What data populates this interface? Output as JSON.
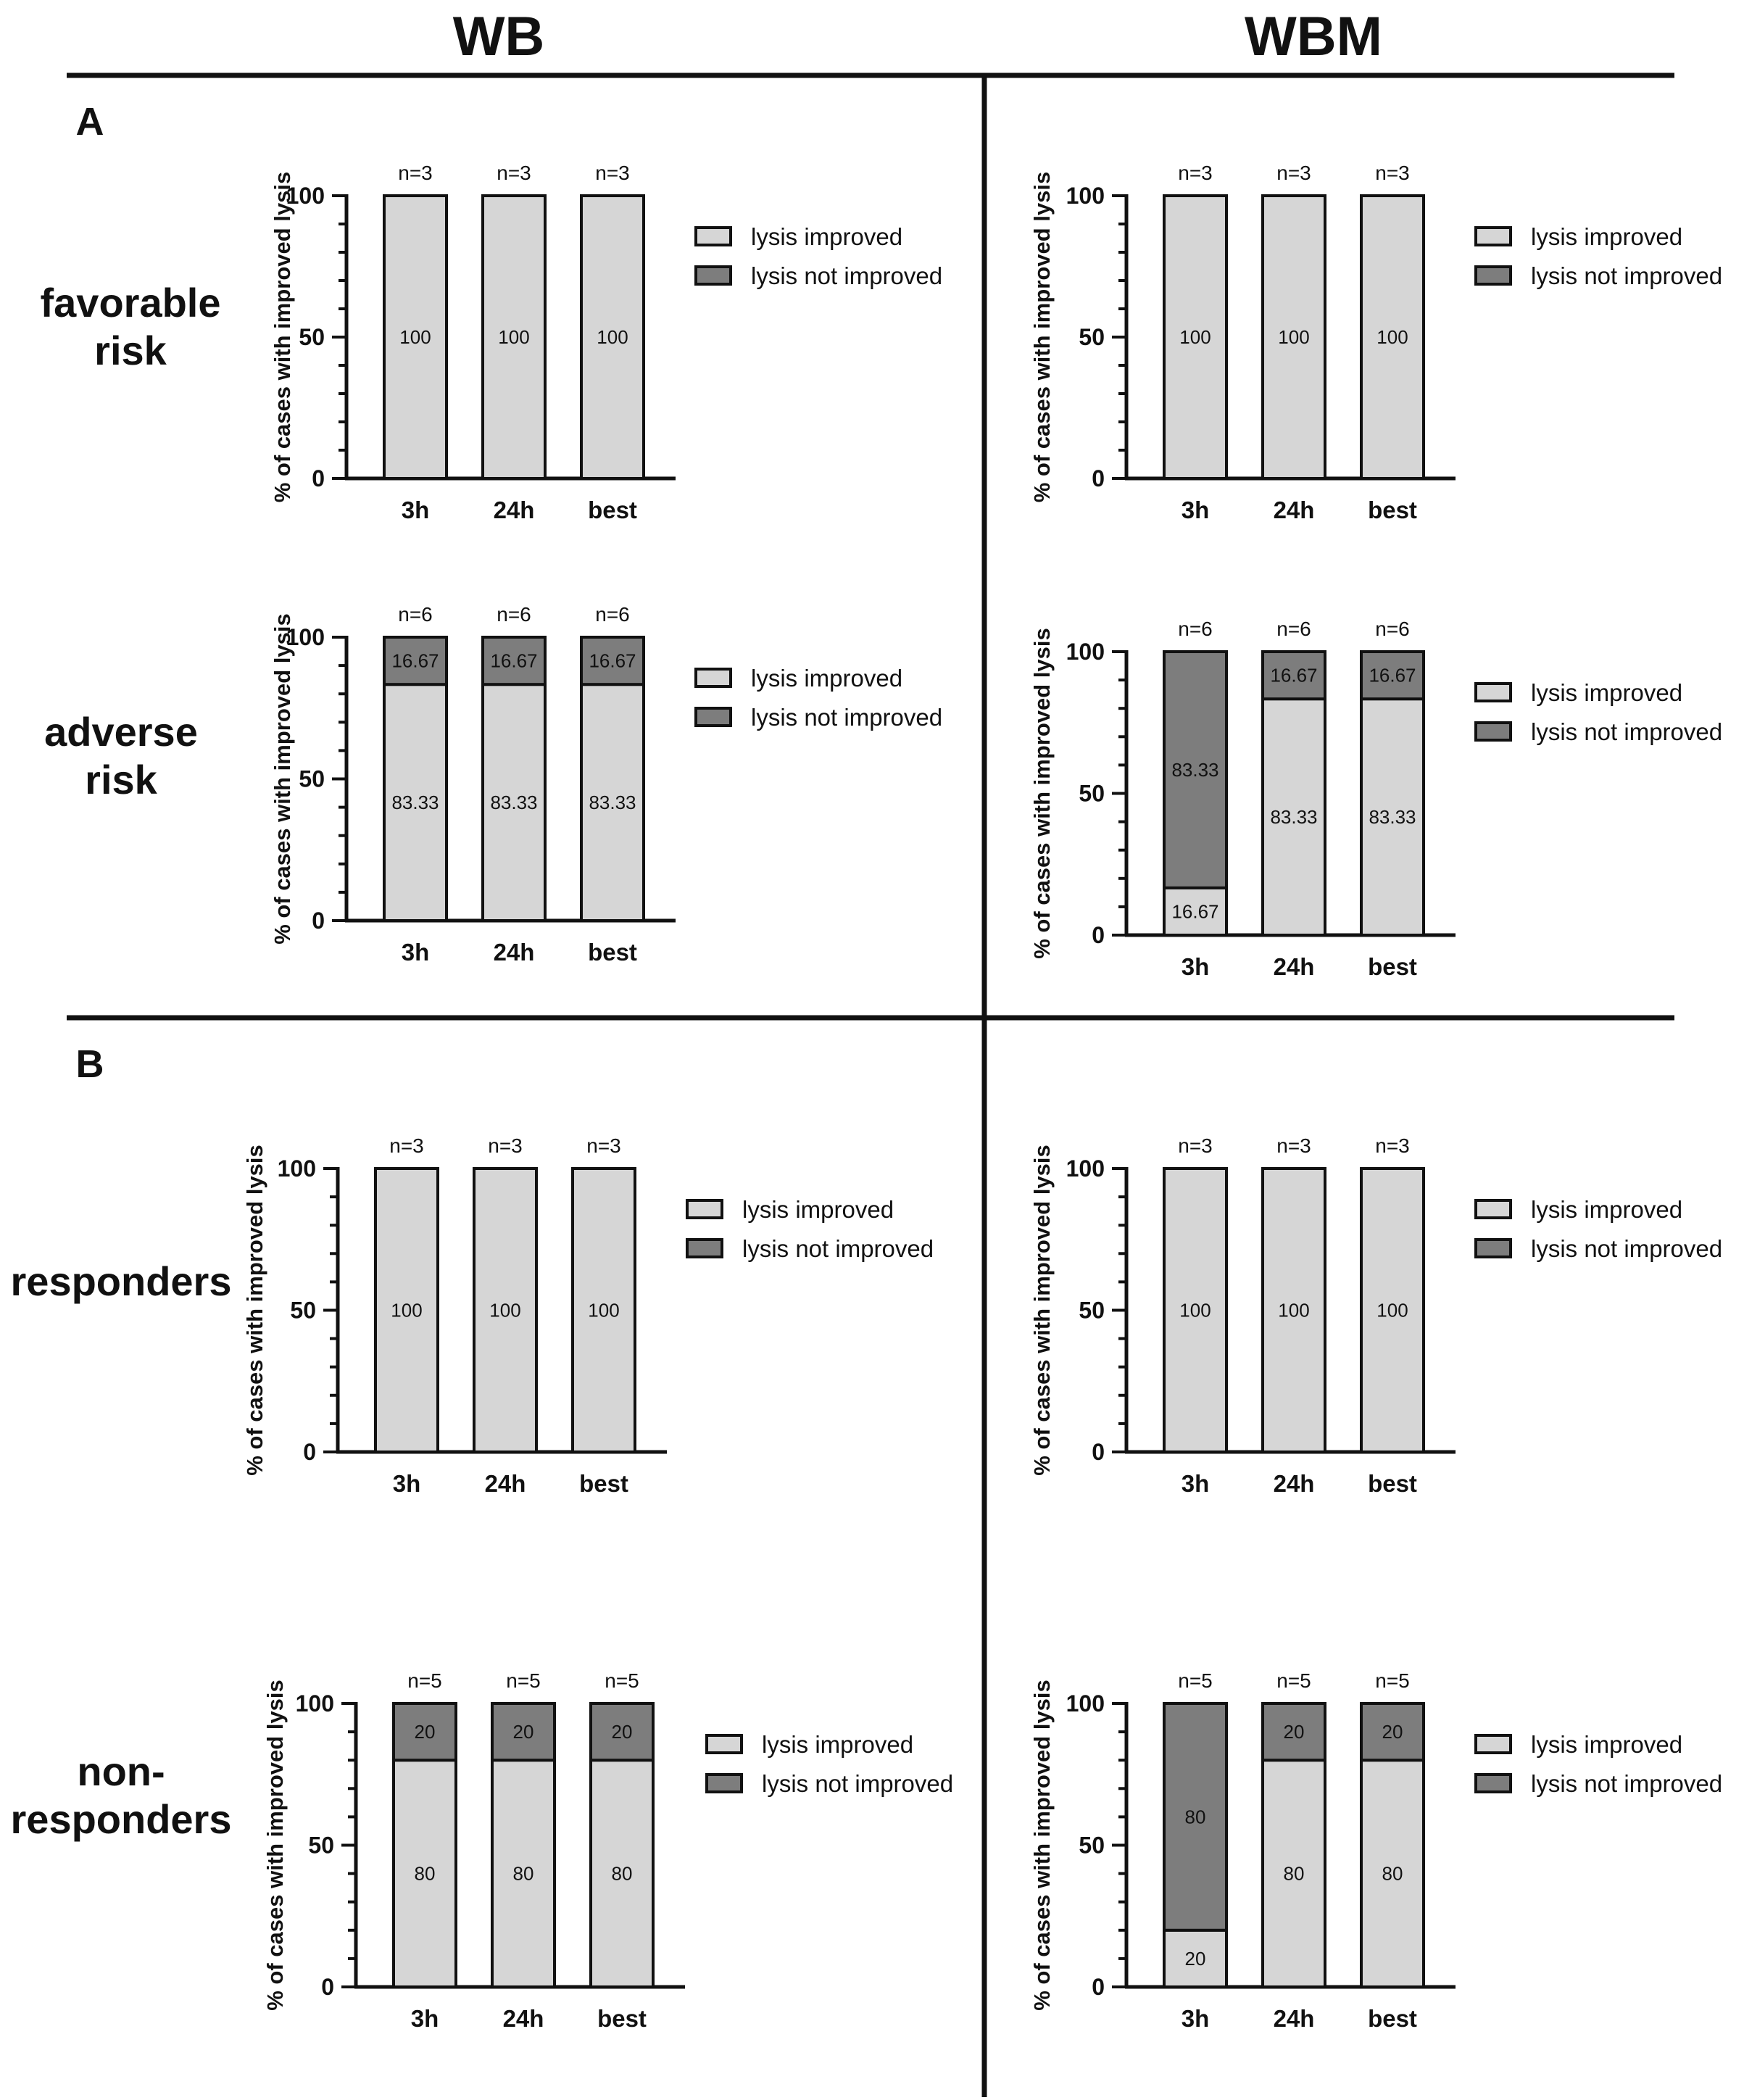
{
  "columns": [
    "WB",
    "WBM"
  ],
  "sections": [
    "A",
    "B"
  ],
  "rows": [
    {
      "label_lines": [
        "favorable",
        "risk"
      ]
    },
    {
      "label_lines": [
        "adverse",
        "risk"
      ]
    },
    {
      "label_lines": [
        "responders"
      ]
    },
    {
      "label_lines": [
        "non-",
        "responders"
      ]
    }
  ],
  "legend": {
    "improved": "lysis improved",
    "not_improved": "lysis not improved"
  },
  "colors": {
    "improved": "#d6d6d6",
    "not_improved": "#7d7d7d",
    "ink": "#111111"
  },
  "chart_data": [
    {
      "id": "WB-favorable",
      "type": "bar",
      "stacked": true,
      "ylabel": "% of cases with improved lysis",
      "categories": [
        "3h",
        "24h",
        "best"
      ],
      "n_labels": [
        "n=3",
        "n=3",
        "n=3"
      ],
      "ylim": [
        0,
        100
      ],
      "yticks": [
        0,
        50,
        100
      ],
      "series": [
        {
          "name": "lysis improved",
          "values": [
            100,
            100,
            100
          ]
        },
        {
          "name": "lysis not improved",
          "values": [
            0,
            0,
            0
          ]
        }
      ]
    },
    {
      "id": "WBM-favorable",
      "type": "bar",
      "stacked": true,
      "ylabel": "% of cases with improved lysis",
      "categories": [
        "3h",
        "24h",
        "best"
      ],
      "n_labels": [
        "n=3",
        "n=3",
        "n=3"
      ],
      "ylim": [
        0,
        100
      ],
      "yticks": [
        0,
        50,
        100
      ],
      "series": [
        {
          "name": "lysis improved",
          "values": [
            100,
            100,
            100
          ]
        },
        {
          "name": "lysis not improved",
          "values": [
            0,
            0,
            0
          ]
        }
      ]
    },
    {
      "id": "WB-adverse",
      "type": "bar",
      "stacked": true,
      "ylabel": "% of cases with improved lysis",
      "categories": [
        "3h",
        "24h",
        "best"
      ],
      "n_labels": [
        "n=6",
        "n=6",
        "n=6"
      ],
      "ylim": [
        0,
        100
      ],
      "yticks": [
        0,
        50,
        100
      ],
      "series": [
        {
          "name": "lysis improved",
          "values": [
            83.33,
            83.33,
            83.33
          ]
        },
        {
          "name": "lysis not improved",
          "values": [
            16.67,
            16.67,
            16.67
          ]
        }
      ]
    },
    {
      "id": "WBM-adverse",
      "type": "bar",
      "stacked": true,
      "ylabel": "% of cases with improved lysis",
      "categories": [
        "3h",
        "24h",
        "best"
      ],
      "n_labels": [
        "n=6",
        "n=6",
        "n=6"
      ],
      "ylim": [
        0,
        100
      ],
      "yticks": [
        0,
        50,
        100
      ],
      "series": [
        {
          "name": "lysis improved",
          "values": [
            16.67,
            83.33,
            83.33
          ]
        },
        {
          "name": "lysis not improved",
          "values": [
            83.33,
            16.67,
            16.67
          ]
        }
      ]
    },
    {
      "id": "WB-responders",
      "type": "bar",
      "stacked": true,
      "ylabel": "% of cases with improved lysis",
      "categories": [
        "3h",
        "24h",
        "best"
      ],
      "n_labels": [
        "n=3",
        "n=3",
        "n=3"
      ],
      "ylim": [
        0,
        100
      ],
      "yticks": [
        0,
        50,
        100
      ],
      "series": [
        {
          "name": "lysis improved",
          "values": [
            100,
            100,
            100
          ]
        },
        {
          "name": "lysis not improved",
          "values": [
            0,
            0,
            0
          ]
        }
      ]
    },
    {
      "id": "WBM-responders",
      "type": "bar",
      "stacked": true,
      "ylabel": "% of cases with improved lysis",
      "categories": [
        "3h",
        "24h",
        "best"
      ],
      "n_labels": [
        "n=3",
        "n=3",
        "n=3"
      ],
      "ylim": [
        0,
        100
      ],
      "yticks": [
        0,
        50,
        100
      ],
      "series": [
        {
          "name": "lysis improved",
          "values": [
            100,
            100,
            100
          ]
        },
        {
          "name": "lysis not improved",
          "values": [
            0,
            0,
            0
          ]
        }
      ]
    },
    {
      "id": "WB-nonresponders",
      "type": "bar",
      "stacked": true,
      "ylabel": "% of cases with improved lysis",
      "categories": [
        "3h",
        "24h",
        "best"
      ],
      "n_labels": [
        "n=5",
        "n=5",
        "n=5"
      ],
      "ylim": [
        0,
        100
      ],
      "yticks": [
        0,
        50,
        100
      ],
      "series": [
        {
          "name": "lysis improved",
          "values": [
            80,
            80,
            80
          ]
        },
        {
          "name": "lysis not improved",
          "values": [
            20,
            20,
            20
          ]
        }
      ]
    },
    {
      "id": "WBM-nonresponders",
      "type": "bar",
      "stacked": true,
      "ylabel": "% of cases with improved lysis",
      "categories": [
        "3h",
        "24h",
        "best"
      ],
      "n_labels": [
        "n=5",
        "n=5",
        "n=5"
      ],
      "ylim": [
        0,
        100
      ],
      "yticks": [
        0,
        50,
        100
      ],
      "series": [
        {
          "name": "lysis improved",
          "values": [
            20,
            80,
            80
          ]
        },
        {
          "name": "lysis not improved",
          "values": [
            80,
            20,
            20
          ]
        }
      ]
    }
  ]
}
